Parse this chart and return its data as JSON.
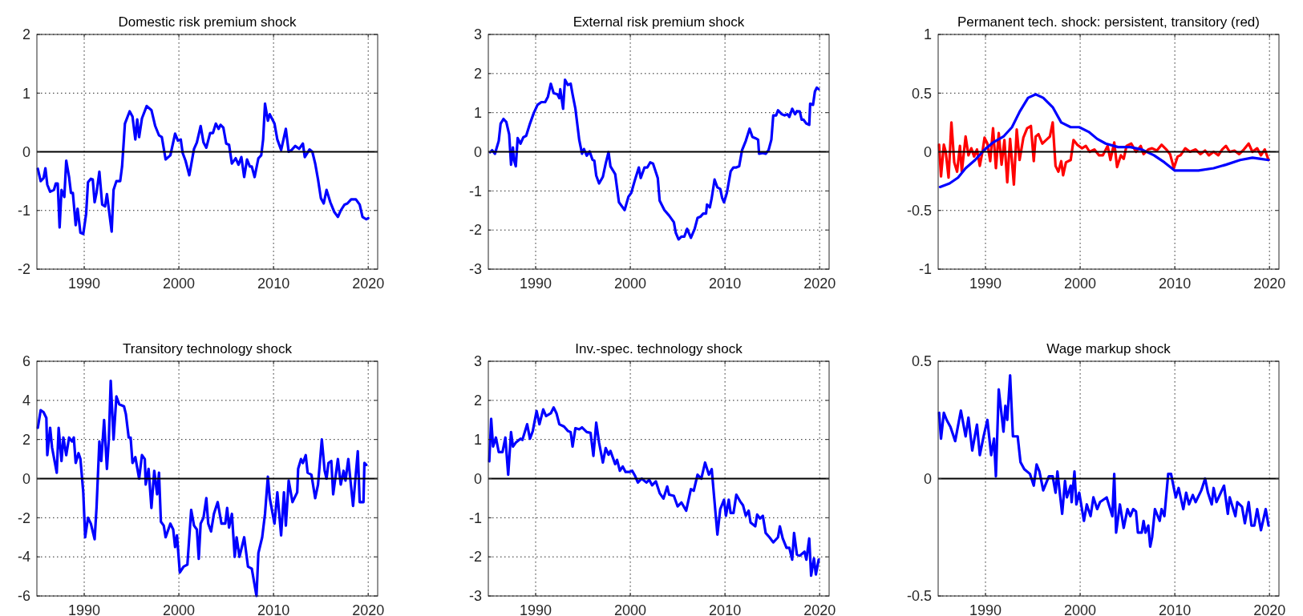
{
  "chart_data": [
    {
      "type": "line",
      "title": "Domestic risk premium shock",
      "xlim": [
        1985,
        2021
      ],
      "xticks": [
        1990,
        2000,
        2010,
        2020
      ],
      "ylim": [
        -2,
        2
      ],
      "yticks": [
        -2,
        -1,
        0,
        1,
        2
      ],
      "grid": true,
      "line_style": "solid",
      "ref_lines": [
        {
          "axis": "y",
          "value": 0,
          "color": "#000000"
        }
      ],
      "series": [
        {
          "color": "#0000ff",
          "x": [
            1985.1,
            1985.4,
            1985.7,
            1985.9,
            1986.1,
            1986.4,
            1986.8,
            1987.0,
            1987.2,
            1987.4,
            1987.6,
            1987.9,
            1988.1,
            1988.4,
            1988.6,
            1988.8,
            1989.1,
            1989.3,
            1989.6,
            1989.9,
            1990.2,
            1990.4,
            1990.7,
            1990.9,
            1991.1,
            1991.3,
            1991.6,
            1991.9,
            1992.2,
            1992.4,
            1992.9,
            1993.1,
            1993.4,
            1993.8,
            1994.0,
            1994.3,
            1994.8,
            1995.1,
            1995.4,
            1995.6,
            1995.8,
            1996.1,
            1996.6,
            1997.1,
            1997.5,
            1997.9,
            1998.2,
            1998.6,
            1999.1,
            1999.6,
            1999.9,
            2000.2,
            2000.4,
            2000.7,
            2001.1,
            2001.6,
            2001.9,
            2002.3,
            2002.6,
            2002.9,
            2003.3,
            2003.6,
            2003.9,
            2004.2,
            2004.4,
            2004.7,
            2005.0,
            2005.3,
            2005.6,
            2006.0,
            2006.3,
            2006.6,
            2006.9,
            2007.2,
            2007.5,
            2007.7,
            2008.0,
            2008.4,
            2008.7,
            2008.9,
            2009.1,
            2009.4,
            2009.6,
            2010.1,
            2010.4,
            2010.8,
            2011.3,
            2011.6,
            2011.9,
            2012.3,
            2012.7,
            2013.1,
            2013.3,
            2013.8,
            2014.1,
            2014.4,
            2014.7,
            2015.0,
            2015.3,
            2015.6,
            2016.0,
            2016.4,
            2016.8,
            2017.1,
            2017.5,
            2017.8,
            2018.2,
            2018.7,
            2019.1,
            2019.4,
            2019.8,
            2020.0
          ],
          "values": [
            -0.29,
            -0.5,
            -0.45,
            -0.28,
            -0.56,
            -0.68,
            -0.65,
            -0.54,
            -0.54,
            -1.29,
            -0.65,
            -0.77,
            -0.15,
            -0.43,
            -0.7,
            -0.7,
            -1.25,
            -0.97,
            -1.38,
            -1.4,
            -1.06,
            -0.52,
            -0.46,
            -0.47,
            -0.86,
            -0.7,
            -0.34,
            -0.9,
            -0.93,
            -0.72,
            -1.36,
            -0.65,
            -0.5,
            -0.5,
            -0.25,
            0.48,
            0.69,
            0.6,
            0.21,
            0.55,
            0.25,
            0.57,
            0.78,
            0.71,
            0.44,
            0.28,
            0.25,
            -0.13,
            -0.06,
            0.31,
            0.19,
            0.21,
            -0.02,
            -0.15,
            -0.4,
            0.05,
            0.16,
            0.44,
            0.16,
            0.07,
            0.32,
            0.32,
            0.48,
            0.39,
            0.46,
            0.41,
            0.14,
            0.12,
            -0.2,
            -0.11,
            -0.22,
            -0.09,
            -0.43,
            -0.13,
            -0.25,
            -0.25,
            -0.43,
            -0.11,
            -0.06,
            0.21,
            0.82,
            0.53,
            0.64,
            0.48,
            0.21,
            0.03,
            0.39,
            0.0,
            0.03,
            0.1,
            0.05,
            0.14,
            -0.09,
            0.04,
            0.0,
            -0.2,
            -0.47,
            -0.79,
            -0.88,
            -0.65,
            -0.86,
            -1.02,
            -1.11,
            -1.0,
            -0.9,
            -0.88,
            -0.81,
            -0.81,
            -0.9,
            -1.11,
            -1.15,
            -1.13
          ]
        }
      ]
    },
    {
      "type": "line",
      "title": "External risk premium shock",
      "xlim": [
        1985,
        2021
      ],
      "xticks": [
        1990,
        2000,
        2010,
        2020
      ],
      "ylim": [
        -3,
        3
      ],
      "yticks": [
        -3,
        -2,
        -1,
        0,
        1,
        2,
        3
      ],
      "grid": true,
      "line_style": "solid",
      "ref_lines": [
        {
          "axis": "y",
          "value": 0,
          "color": "#000000"
        }
      ],
      "series": [
        {
          "color": "#0000ff",
          "x": [
            1985.2,
            1985.4,
            1985.7,
            1986.1,
            1986.3,
            1986.6,
            1986.9,
            1987.2,
            1987.4,
            1987.6,
            1987.7,
            1987.9,
            1988.1,
            1988.4,
            1988.7,
            1989.0,
            1989.4,
            1989.8,
            1990.2,
            1990.6,
            1991.0,
            1991.3,
            1991.6,
            1991.9,
            1992.3,
            1992.5,
            1992.6,
            1992.9,
            1993.1,
            1993.4,
            1993.7,
            1993.9,
            1994.2,
            1994.6,
            1994.9,
            1995.1,
            1995.4,
            1995.7,
            1996.0,
            1996.2,
            1996.4,
            1996.7,
            1997.1,
            1997.4,
            1997.7,
            1997.9,
            1998.4,
            1998.8,
            1999.4,
            1999.8,
            2000.1,
            2000.5,
            2000.9,
            2001.1,
            2001.5,
            2001.8,
            2002.1,
            2002.4,
            2002.9,
            2003.1,
            2003.6,
            2004.1,
            2004.6,
            2004.8,
            2005.1,
            2005.4,
            2005.7,
            2006.0,
            2006.4,
            2006.8,
            2007.1,
            2007.4,
            2007.7,
            2008.0,
            2008.1,
            2008.4,
            2008.6,
            2008.9,
            2009.2,
            2009.5,
            2009.7,
            2009.9,
            2010.2,
            2010.6,
            2010.9,
            2011.2,
            2011.5,
            2011.8,
            2012.2,
            2012.6,
            2012.9,
            2013.2,
            2013.5,
            2013.6,
            2014.0,
            2014.3,
            2014.6,
            2014.9,
            2015.1,
            2015.4,
            2015.6,
            2016.0,
            2016.3,
            2016.6,
            2016.8,
            2017.1,
            2017.4,
            2017.6,
            2017.9,
            2018.1,
            2018.3,
            2018.6,
            2018.9,
            2019.0,
            2019.3,
            2019.5,
            2019.7,
            2019.9
          ],
          "values": [
            -0.01,
            0.04,
            -0.05,
            0.28,
            0.72,
            0.84,
            0.76,
            0.45,
            -0.33,
            0.11,
            -0.2,
            -0.37,
            0.35,
            0.21,
            0.37,
            0.41,
            0.72,
            0.99,
            1.2,
            1.27,
            1.27,
            1.41,
            1.74,
            1.5,
            1.47,
            1.37,
            1.6,
            1.1,
            1.84,
            1.71,
            1.74,
            1.47,
            1.1,
            0.31,
            -0.05,
            0.07,
            -0.1,
            0.01,
            -0.2,
            -0.23,
            -0.61,
            -0.81,
            -0.64,
            -0.3,
            -0.01,
            -0.37,
            -0.57,
            -1.29,
            -1.49,
            -1.15,
            -1.05,
            -0.71,
            -0.4,
            -0.67,
            -0.4,
            -0.4,
            -0.27,
            -0.3,
            -0.67,
            -1.25,
            -1.49,
            -1.63,
            -1.8,
            -2.07,
            -2.24,
            -2.17,
            -2.17,
            -1.97,
            -2.2,
            -1.97,
            -1.69,
            -1.66,
            -1.58,
            -1.58,
            -1.35,
            -1.42,
            -1.18,
            -0.71,
            -0.91,
            -0.95,
            -1.18,
            -1.29,
            -1.05,
            -0.5,
            -0.4,
            -0.4,
            -0.37,
            0.04,
            0.28,
            0.59,
            0.38,
            0.35,
            0.31,
            -0.05,
            -0.03,
            -0.05,
            0.04,
            0.31,
            0.93,
            0.93,
            1.06,
            0.96,
            0.93,
            0.96,
            0.89,
            1.1,
            0.96,
            1.04,
            1.03,
            0.82,
            0.82,
            0.72,
            0.69,
            1.23,
            1.2,
            1.54,
            1.64,
            1.6
          ]
        }
      ]
    },
    {
      "type": "line",
      "title": "Permanent tech. shock: persistent, transitory (red)",
      "xlim": [
        1985,
        2021
      ],
      "xticks": [
        1990,
        2000,
        2010,
        2020
      ],
      "ylim": [
        -1,
        1
      ],
      "yticks": [
        -1,
        -0.5,
        0,
        0.5,
        1
      ],
      "grid": true,
      "line_style": "solid",
      "ref_lines": [
        {
          "axis": "y",
          "value": 0,
          "color": "#000000"
        }
      ],
      "series": [
        {
          "color": "#ff0000",
          "x": [
            1985.1,
            1985.3,
            1985.6,
            1985.8,
            1986.1,
            1986.4,
            1986.7,
            1987.0,
            1987.3,
            1987.5,
            1987.9,
            1988.2,
            1988.5,
            1988.8,
            1989.1,
            1989.4,
            1989.7,
            1989.9,
            1990.2,
            1990.5,
            1990.8,
            1991.1,
            1991.4,
            1991.7,
            1992.0,
            1992.3,
            1992.6,
            1993.0,
            1993.3,
            1993.6,
            1994.0,
            1994.4,
            1994.8,
            1995.1,
            1995.3,
            1995.6,
            1996.0,
            1996.4,
            1996.8,
            1997.1,
            1997.4,
            1997.7,
            1998.0,
            1998.2,
            1998.5,
            1999.0,
            1999.3,
            1999.7,
            2000.2,
            2000.6,
            2001.0,
            2001.5,
            2002.0,
            2002.4,
            2002.9,
            2003.2,
            2003.6,
            2003.9,
            2004.3,
            2004.6,
            2004.9,
            2005.4,
            2005.9,
            2006.4,
            2006.7,
            2007.2,
            2007.6,
            2008.1,
            2008.6,
            2009.1,
            2009.5,
            2009.9,
            2010.3,
            2010.6,
            2011.1,
            2011.6,
            2012.2,
            2012.7,
            2013.2,
            2013.6,
            2014.1,
            2014.6,
            2015.0,
            2015.4,
            2015.8,
            2016.3,
            2016.8,
            2017.3,
            2017.8,
            2018.2,
            2018.7,
            2019.1,
            2019.5,
            2019.9
          ],
          "values": [
            0.06,
            -0.21,
            0.06,
            0.0,
            -0.22,
            0.25,
            -0.09,
            -0.17,
            0.05,
            -0.17,
            0.13,
            -0.03,
            0.03,
            -0.04,
            0.02,
            -0.12,
            0.01,
            0.12,
            0.07,
            -0.08,
            0.2,
            -0.14,
            0.16,
            -0.11,
            0.1,
            -0.26,
            0.11,
            -0.28,
            0.19,
            -0.07,
            0.12,
            0.2,
            0.22,
            -0.08,
            0.13,
            0.15,
            0.07,
            0.1,
            0.13,
            0.25,
            -0.12,
            -0.17,
            -0.08,
            -0.2,
            -0.09,
            -0.07,
            0.1,
            0.06,
            0.03,
            0.05,
            0.0,
            0.02,
            -0.03,
            -0.03,
            0.05,
            -0.07,
            0.08,
            -0.13,
            -0.03,
            -0.06,
            0.05,
            0.07,
            0.0,
            0.05,
            -0.02,
            0.02,
            0.03,
            0.01,
            0.06,
            0.02,
            -0.02,
            -0.14,
            -0.04,
            -0.03,
            0.03,
            0.0,
            0.02,
            -0.02,
            0.01,
            -0.03,
            0.0,
            -0.03,
            0.02,
            0.05,
            0.0,
            0.01,
            -0.02,
            0.02,
            0.07,
            0.0,
            0.03,
            -0.03,
            0.02,
            -0.07
          ]
        },
        {
          "color": "#0000ff",
          "x": [
            1985.2,
            1986.2,
            1987.1,
            1987.9,
            1988.9,
            1989.8,
            1990.8,
            1991.9,
            1992.8,
            1993.6,
            1994.5,
            1995.3,
            1996.1,
            1997.1,
            1998.0,
            1999.0,
            1999.9,
            2000.9,
            2001.8,
            2002.7,
            2004.0,
            2005.3,
            2006.5,
            2007.8,
            2008.9,
            2010.0,
            2010.9,
            2012.5,
            2014.1,
            2015.4,
            2016.9,
            2018.2,
            2019.1,
            2019.9
          ],
          "values": [
            -0.3,
            -0.27,
            -0.22,
            -0.14,
            -0.07,
            0.01,
            0.08,
            0.13,
            0.21,
            0.34,
            0.46,
            0.49,
            0.46,
            0.38,
            0.25,
            0.21,
            0.21,
            0.17,
            0.11,
            0.07,
            0.04,
            0.04,
            0.02,
            -0.03,
            -0.09,
            -0.16,
            -0.16,
            -0.16,
            -0.14,
            -0.11,
            -0.07,
            -0.05,
            -0.06,
            -0.07
          ]
        }
      ]
    },
    {
      "type": "line",
      "title": "Transitory technology shock",
      "xlim": [
        1985,
        2021
      ],
      "xticks": [
        1990,
        2000,
        2010,
        2020
      ],
      "ylim": [
        -6,
        6
      ],
      "yticks": [
        -6,
        -4,
        -2,
        0,
        2,
        4,
        6
      ],
      "grid": true,
      "line_style": "solid",
      "ref_lines": [
        {
          "axis": "y",
          "value": 0,
          "color": "#000000"
        }
      ],
      "series": [
        {
          "color": "#0000ff",
          "x": [
            1985.1,
            1985.4,
            1985.7,
            1986.0,
            1986.1,
            1986.4,
            1986.6,
            1987.1,
            1987.3,
            1987.6,
            1987.8,
            1988.1,
            1988.4,
            1988.7,
            1988.9,
            1989.1,
            1989.4,
            1989.6,
            1989.9,
            1990.1,
            1990.4,
            1990.7,
            1991.1,
            1991.3,
            1991.6,
            1991.8,
            1992.1,
            1992.4,
            1992.6,
            1992.8,
            1993.1,
            1993.4,
            1993.7,
            1994.2,
            1994.4,
            1994.7,
            1994.9,
            1995.1,
            1995.4,
            1995.8,
            1996.1,
            1996.4,
            1996.5,
            1996.8,
            1997.1,
            1997.4,
            1997.7,
            1997.9,
            1998.1,
            1998.4,
            1998.6,
            1999.1,
            1999.4,
            1999.6,
            1999.8,
            2000.1,
            2000.5,
            2000.9,
            2001.3,
            2001.6,
            2001.9,
            2002.1,
            2002.3,
            2002.6,
            2002.9,
            2003.1,
            2003.4,
            2003.7,
            2004.1,
            2004.5,
            2004.9,
            2005.1,
            2005.3,
            2005.6,
            2005.9,
            2006.1,
            2006.4,
            2006.9,
            2007.3,
            2007.7,
            2008.2,
            2008.4,
            2008.8,
            2009.1,
            2009.4,
            2009.6,
            2010.1,
            2010.4,
            2010.8,
            2011.1,
            2011.3,
            2011.6,
            2012.0,
            2012.5,
            2012.6,
            2012.9,
            2013.1,
            2013.4,
            2013.6,
            2014.0,
            2014.4,
            2014.7,
            2015.1,
            2015.4,
            2015.6,
            2015.8,
            2016.1,
            2016.3,
            2016.8,
            2017.1,
            2017.4,
            2017.6,
            2017.9,
            2018.4,
            2018.9,
            2019.1,
            2019.5,
            2019.6,
            2019.8
          ],
          "values": [
            2.6,
            3.5,
            3.4,
            3.1,
            1.2,
            2.6,
            1.6,
            0.3,
            2.6,
            0.9,
            2.1,
            1.2,
            2.1,
            1.9,
            2.1,
            0.8,
            1.3,
            1.0,
            -0.7,
            -3.0,
            -2.0,
            -2.3,
            -3.1,
            -1.5,
            1.9,
            0.9,
            3.0,
            0.5,
            2.0,
            5.0,
            2.0,
            4.2,
            3.8,
            3.7,
            3.3,
            2.1,
            2.1,
            0.8,
            1.1,
            0.0,
            1.2,
            1.0,
            -0.3,
            0.5,
            -1.5,
            0.4,
            -0.8,
            0.3,
            -2.2,
            -2.4,
            -3.0,
            -2.3,
            -2.6,
            -3.5,
            -2.9,
            -4.8,
            -4.5,
            -4.4,
            -1.6,
            -2.4,
            -2.6,
            -4.1,
            -2.3,
            -2.0,
            -1.0,
            -2.3,
            -2.7,
            -1.8,
            -1.2,
            -2.3,
            -2.3,
            -1.5,
            -2.5,
            -1.8,
            -4.0,
            -3.0,
            -4.0,
            -3.0,
            -4.5,
            -4.6,
            -6.0,
            -3.8,
            -3.0,
            -1.8,
            0.1,
            -1.0,
            -2.3,
            -0.7,
            -2.9,
            -0.7,
            -2.4,
            -0.1,
            -1.2,
            -0.7,
            0.5,
            1.0,
            0.8,
            1.2,
            0.3,
            0.2,
            -1.0,
            -0.3,
            2.0,
            0.4,
            0.0,
            0.8,
            0.9,
            -0.8,
            1.0,
            -0.3,
            0.4,
            -0.1,
            1.0,
            -1.4,
            1.4,
            -1.2,
            -1.2,
            0.8,
            0.7
          ]
        }
      ]
    },
    {
      "type": "line",
      "title": "Inv.-spec. technology shock",
      "xlim": [
        1985,
        2021
      ],
      "xticks": [
        1990,
        2000,
        2010,
        2020
      ],
      "ylim": [
        -3,
        3
      ],
      "yticks": [
        -3,
        -2,
        -1,
        0,
        1,
        2,
        3
      ],
      "grid": true,
      "line_style": "solid",
      "ref_lines": [
        {
          "axis": "y",
          "value": 0,
          "color": "#000000"
        }
      ],
      "series": [
        {
          "color": "#0000ff",
          "x": [
            1985.1,
            1985.3,
            1985.5,
            1985.8,
            1986.1,
            1986.5,
            1986.8,
            1987.1,
            1987.4,
            1987.6,
            1987.9,
            1988.4,
            1988.6,
            1989.1,
            1989.4,
            1989.7,
            1990.1,
            1990.4,
            1990.8,
            1991.1,
            1991.6,
            1991.9,
            1992.2,
            1992.5,
            1993.0,
            1993.4,
            1993.7,
            1993.9,
            1994.2,
            1994.6,
            1994.9,
            1995.4,
            1995.8,
            1996.1,
            1996.4,
            1996.7,
            1997.1,
            1997.4,
            1997.7,
            1997.9,
            1998.4,
            1998.6,
            1998.9,
            1999.2,
            1999.5,
            1999.9,
            2000.2,
            2000.5,
            2000.8,
            2001.2,
            2001.7,
            2002.0,
            2002.3,
            2002.7,
            2003.1,
            2003.5,
            2003.9,
            2004.1,
            2004.6,
            2005.0,
            2005.4,
            2005.9,
            2006.4,
            2006.7,
            2007.1,
            2007.5,
            2007.9,
            2008.3,
            2008.6,
            2009.2,
            2009.5,
            2009.9,
            2010.1,
            2010.4,
            2010.6,
            2010.9,
            2011.2,
            2011.6,
            2011.9,
            2012.2,
            2012.5,
            2012.7,
            2013.2,
            2013.4,
            2013.7,
            2014.0,
            2014.3,
            2014.7,
            2015.1,
            2015.6,
            2015.8,
            2016.1,
            2016.5,
            2016.8,
            2017.1,
            2017.3,
            2017.6,
            2017.9,
            2018.4,
            2018.6,
            2018.9,
            2019.1,
            2019.4,
            2019.6,
            2019.9
          ],
          "values": [
            0.44,
            1.53,
            0.82,
            1.05,
            0.68,
            0.68,
            1.05,
            0.1,
            1.19,
            0.82,
            0.92,
            1.02,
            0.99,
            1.39,
            1.02,
            1.22,
            1.73,
            1.39,
            1.77,
            1.6,
            1.67,
            1.82,
            1.67,
            1.39,
            1.33,
            1.22,
            1.19,
            0.82,
            1.29,
            1.26,
            1.31,
            1.19,
            1.17,
            0.58,
            1.43,
            0.92,
            0.41,
            0.78,
            0.61,
            0.71,
            0.37,
            0.48,
            0.2,
            0.31,
            0.17,
            0.17,
            0.2,
            0.07,
            -0.1,
            0.0,
            -0.1,
            -0.03,
            -0.17,
            -0.07,
            -0.37,
            -0.51,
            -0.2,
            -0.41,
            -0.44,
            -0.71,
            -0.61,
            -0.82,
            -0.27,
            -0.31,
            0.1,
            0.0,
            0.41,
            0.1,
            0.24,
            -1.43,
            -0.78,
            -0.54,
            -0.95,
            -0.54,
            -0.88,
            -0.88,
            -0.41,
            -0.58,
            -0.68,
            -0.95,
            -0.82,
            -1.12,
            -1.22,
            -0.92,
            -1.02,
            -0.95,
            -1.39,
            -1.5,
            -1.63,
            -1.5,
            -1.22,
            -1.53,
            -1.77,
            -1.77,
            -2.07,
            -1.39,
            -1.94,
            -1.97,
            -1.87,
            -2.07,
            -1.53,
            -2.48,
            -2.04,
            -2.45,
            -2.07
          ]
        }
      ]
    },
    {
      "type": "line",
      "title": "Wage markup shock",
      "xlim": [
        1985,
        2021
      ],
      "xticks": [
        1990,
        2000,
        2010,
        2020
      ],
      "ylim": [
        -0.5,
        0.5
      ],
      "yticks": [
        -0.5,
        0,
        0.5
      ],
      "grid": true,
      "line_style": "solid",
      "ref_lines": [
        {
          "axis": "y",
          "value": 0,
          "color": "#000000"
        }
      ],
      "series": [
        {
          "color": "#0000ff",
          "x": [
            1985.1,
            1985.3,
            1985.6,
            1985.9,
            1986.3,
            1986.8,
            1987.4,
            1987.9,
            1988.2,
            1988.6,
            1989.1,
            1989.4,
            1989.8,
            1990.2,
            1990.6,
            1990.9,
            1991.1,
            1991.4,
            1991.9,
            1992.1,
            1992.3,
            1992.6,
            1992.9,
            1993.4,
            1993.7,
            1994.1,
            1994.7,
            1995.1,
            1995.4,
            1995.7,
            1996.1,
            1996.7,
            1997.1,
            1997.4,
            1997.6,
            1998.1,
            1998.4,
            1998.6,
            1999.0,
            1999.1,
            1999.4,
            1999.6,
            1999.9,
            2000.4,
            2000.7,
            2001.1,
            2001.4,
            2001.8,
            2002.1,
            2002.8,
            2003.4,
            2003.6,
            2003.8,
            2004.2,
            2004.6,
            2005.0,
            2005.3,
            2005.6,
            2005.9,
            2006.1,
            2006.5,
            2006.7,
            2006.9,
            2007.2,
            2007.4,
            2007.6,
            2007.9,
            2008.4,
            2008.6,
            2008.9,
            2009.3,
            2009.6,
            2010.1,
            2010.4,
            2010.9,
            2011.2,
            2011.5,
            2011.9,
            2012.2,
            2012.8,
            2013.2,
            2013.5,
            2013.9,
            2014.1,
            2014.4,
            2015.2,
            2015.6,
            2015.8,
            2016.4,
            2016.6,
            2017.1,
            2017.4,
            2017.8,
            2018.1,
            2018.4,
            2018.7,
            2019.1,
            2019.6,
            2019.9
          ],
          "values": [
            0.28,
            0.17,
            0.28,
            0.25,
            0.22,
            0.16,
            0.29,
            0.18,
            0.26,
            0.12,
            0.23,
            0.1,
            0.18,
            0.25,
            0.1,
            0.17,
            0.01,
            0.38,
            0.2,
            0.31,
            0.25,
            0.44,
            0.18,
            0.18,
            0.07,
            0.04,
            0.02,
            -0.03,
            0.06,
            0.03,
            -0.05,
            0.01,
            0.01,
            -0.06,
            0.03,
            -0.15,
            -0.01,
            -0.08,
            -0.03,
            -0.1,
            0.03,
            -0.11,
            -0.06,
            -0.18,
            -0.11,
            -0.16,
            -0.08,
            -0.13,
            -0.1,
            -0.08,
            -0.16,
            0.02,
            -0.23,
            -0.11,
            -0.21,
            -0.13,
            -0.16,
            -0.13,
            -0.14,
            -0.23,
            -0.23,
            -0.18,
            -0.23,
            -0.2,
            -0.29,
            -0.25,
            -0.13,
            -0.18,
            -0.13,
            -0.16,
            0.02,
            0.02,
            -0.08,
            -0.04,
            -0.13,
            -0.06,
            -0.11,
            -0.07,
            -0.1,
            -0.05,
            0.0,
            -0.06,
            -0.11,
            -0.04,
            -0.1,
            -0.03,
            -0.15,
            -0.08,
            -0.16,
            -0.1,
            -0.12,
            -0.19,
            -0.1,
            -0.2,
            -0.2,
            -0.13,
            -0.22,
            -0.13,
            -0.2
          ]
        }
      ]
    }
  ]
}
